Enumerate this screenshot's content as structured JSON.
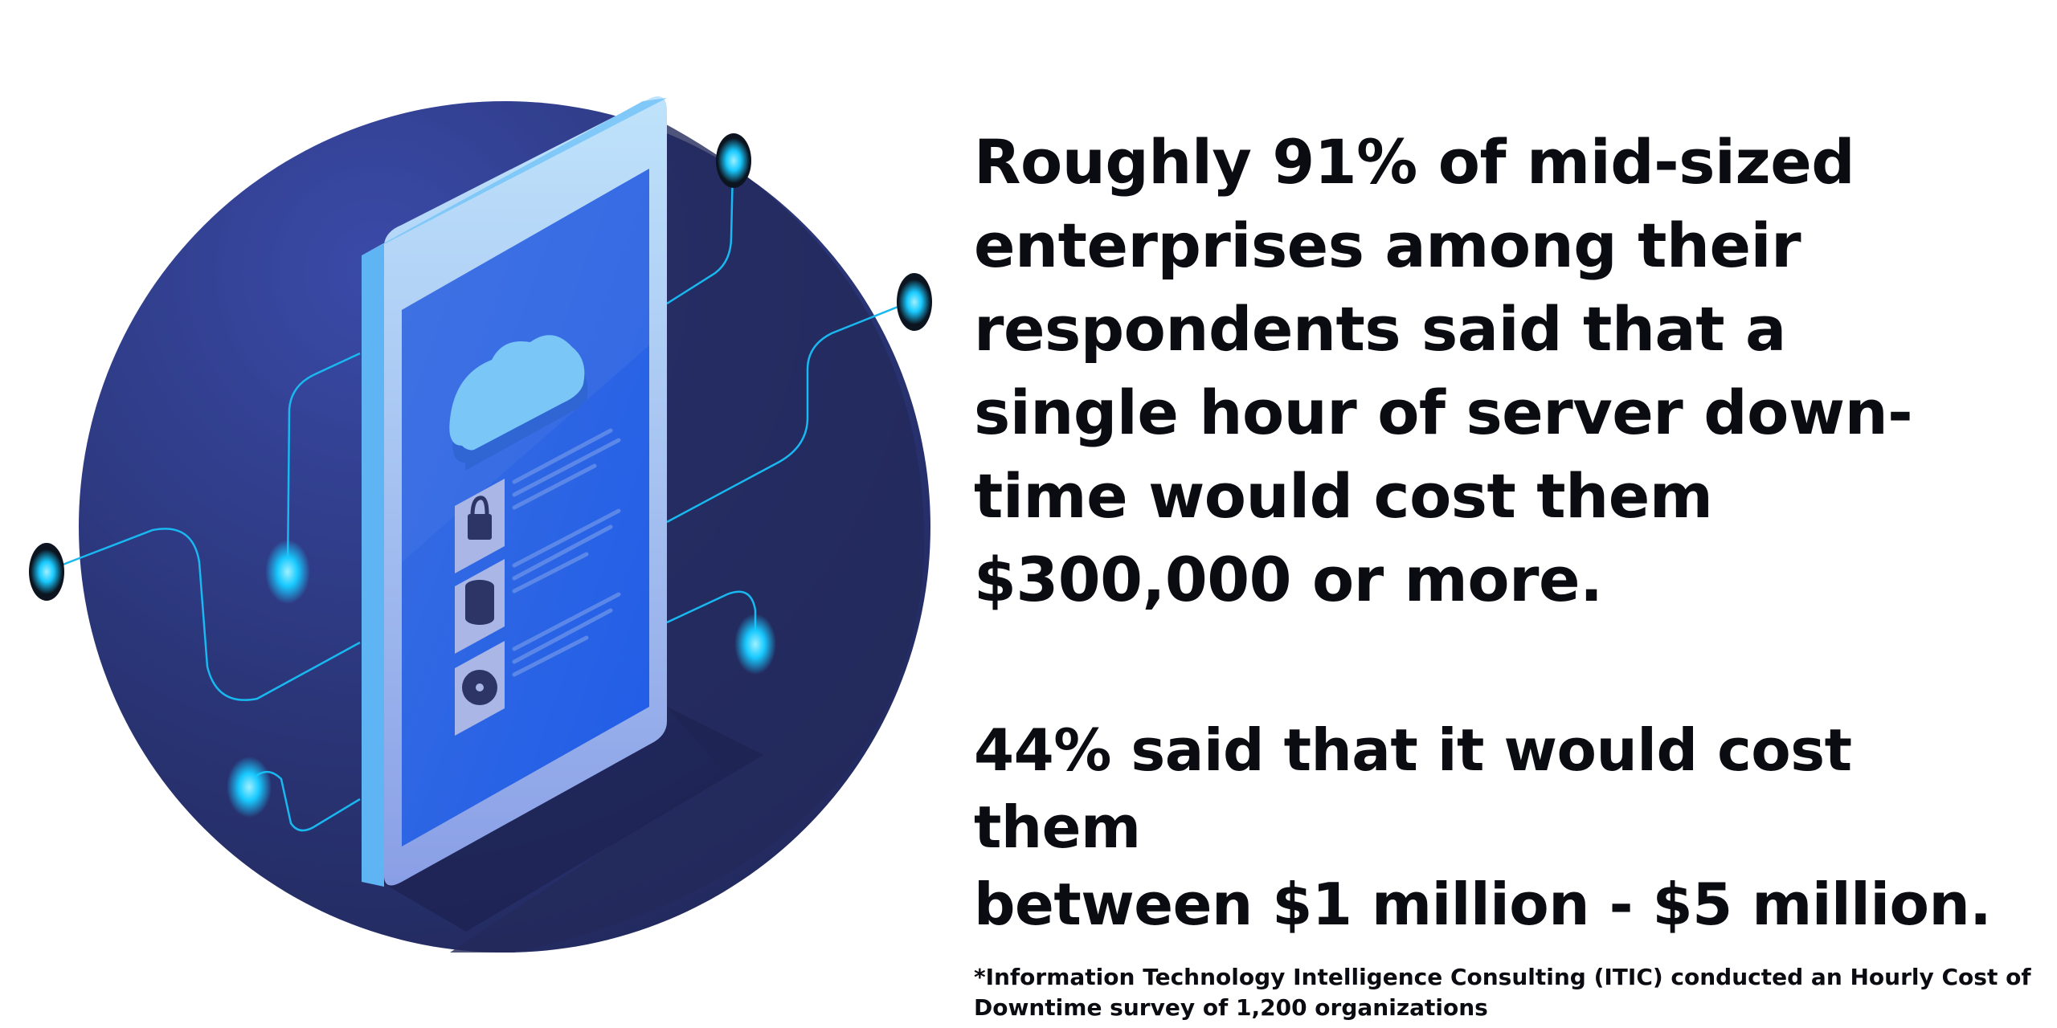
{
  "headline": {
    "lines": [
      "Roughly 91% of mid-sized",
      "enterprises among their",
      "respondents said that a",
      "single hour of server down-",
      "time would cost them",
      "$300,000 or more."
    ]
  },
  "stat": {
    "lines": [
      "44% said that it would cost them",
      "between $1 million - $5 million."
    ]
  },
  "footnote": {
    "lines": [
      "*Information Technology Intelligence Consulting (ITIC) conducted an Hourly Cost of",
      "Downtime survey of 1,200 organizations"
    ]
  },
  "illustration": {
    "icons": [
      "cloud-icon",
      "lock-icon",
      "database-icon",
      "disc-icon"
    ],
    "colors": {
      "circle": "#2a3570",
      "tablet_frame": "#8ec6f4",
      "screen": "#2f6ae4",
      "glow": "#18c9ff"
    }
  }
}
